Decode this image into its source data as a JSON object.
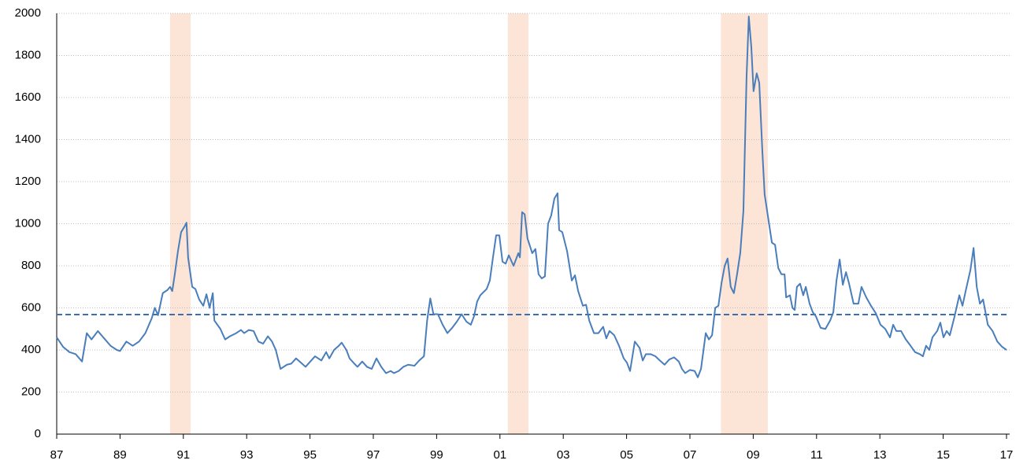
{
  "chart_data": {
    "type": "line",
    "x": [
      1987.0,
      1987.2,
      1987.4,
      1987.6,
      1987.8,
      1987.95,
      1988.1,
      1988.3,
      1988.5,
      1988.7,
      1988.9,
      1989.0,
      1989.2,
      1989.4,
      1989.6,
      1989.8,
      1990.0,
      1990.1,
      1990.2,
      1990.35,
      1990.5,
      1990.58,
      1990.65,
      1990.73,
      1990.83,
      1990.93,
      1991.05,
      1991.1,
      1991.15,
      1991.28,
      1991.38,
      1991.5,
      1991.63,
      1991.73,
      1991.83,
      1991.93,
      1991.98,
      1992.17,
      1992.32,
      1992.47,
      1992.67,
      1992.82,
      1992.92,
      1993.07,
      1993.22,
      1993.37,
      1993.52,
      1993.67,
      1993.8,
      1993.92,
      1994.07,
      1994.27,
      1994.41,
      1994.56,
      1994.71,
      1994.86,
      1995.01,
      1995.16,
      1995.36,
      1995.51,
      1995.61,
      1995.76,
      1995.91,
      1996.0,
      1996.15,
      1996.25,
      1996.4,
      1996.5,
      1996.65,
      1996.8,
      1996.95,
      1997.1,
      1997.25,
      1997.4,
      1997.55,
      1997.65,
      1997.8,
      1997.95,
      1998.1,
      1998.3,
      1998.45,
      1998.6,
      1998.7,
      1998.8,
      1998.9,
      1999.04,
      1999.19,
      1999.34,
      1999.49,
      1999.64,
      1999.79,
      1999.94,
      2000.08,
      2000.18,
      2000.28,
      2000.38,
      2000.58,
      2000.68,
      2000.78,
      2000.88,
      2000.98,
      2001.08,
      2001.18,
      2001.28,
      2001.43,
      2001.58,
      2001.63,
      2001.7,
      2001.78,
      2001.87,
      2002.02,
      2002.12,
      2002.22,
      2002.32,
      2002.42,
      2002.52,
      2002.62,
      2002.72,
      2002.82,
      2002.87,
      2002.97,
      2003.12,
      2003.27,
      2003.37,
      2003.47,
      2003.62,
      2003.72,
      2003.82,
      2003.97,
      2004.11,
      2004.26,
      2004.36,
      2004.46,
      2004.61,
      2004.76,
      2004.91,
      2005.01,
      2005.11,
      2005.26,
      2005.41,
      2005.51,
      2005.61,
      2005.76,
      2005.91,
      2006.05,
      2006.2,
      2006.35,
      2006.5,
      2006.65,
      2006.75,
      2006.85,
      2007.0,
      2007.15,
      2007.25,
      2007.35,
      2007.5,
      2007.6,
      2007.7,
      2007.8,
      2007.9,
      2008.0,
      2008.1,
      2008.19,
      2008.29,
      2008.39,
      2008.49,
      2008.59,
      2008.69,
      2008.79,
      2008.86,
      2008.94,
      2009.01,
      2009.11,
      2009.19,
      2009.29,
      2009.36,
      2009.49,
      2009.59,
      2009.69,
      2009.79,
      2009.89,
      2009.99,
      2010.04,
      2010.16,
      2010.24,
      2010.31,
      2010.38,
      2010.48,
      2010.58,
      2010.66,
      2010.78,
      2010.88,
      2010.98,
      2011.13,
      2011.28,
      2011.43,
      2011.53,
      2011.63,
      2011.73,
      2011.83,
      2011.93,
      2012.02,
      2012.17,
      2012.32,
      2012.42,
      2012.57,
      2012.72,
      2012.87,
      2013.02,
      2013.17,
      2013.32,
      2013.42,
      2013.52,
      2013.67,
      2013.82,
      2013.97,
      2014.11,
      2014.26,
      2014.36,
      2014.46,
      2014.56,
      2014.66,
      2014.81,
      2014.91,
      2015.01,
      2015.11,
      2015.21,
      2015.36,
      2015.51,
      2015.61,
      2015.71,
      2015.86,
      2015.96,
      2016.06,
      2016.16,
      2016.26,
      2016.41,
      2016.56,
      2016.71,
      2016.86,
      2017.0
    ],
    "values": [
      460,
      415,
      390,
      380,
      345,
      480,
      450,
      490,
      455,
      420,
      400,
      395,
      440,
      420,
      440,
      480,
      550,
      600,
      565,
      670,
      685,
      700,
      680,
      760,
      870,
      960,
      990,
      1005,
      840,
      700,
      690,
      640,
      610,
      665,
      600,
      670,
      540,
      500,
      450,
      465,
      480,
      495,
      480,
      495,
      490,
      440,
      430,
      465,
      440,
      400,
      310,
      330,
      335,
      360,
      340,
      320,
      345,
      370,
      350,
      390,
      360,
      400,
      420,
      435,
      400,
      360,
      335,
      320,
      345,
      320,
      310,
      360,
      320,
      290,
      300,
      290,
      300,
      320,
      330,
      325,
      350,
      370,
      540,
      645,
      570,
      570,
      520,
      480,
      505,
      535,
      570,
      535,
      520,
      560,
      630,
      660,
      690,
      730,
      840,
      945,
      945,
      820,
      810,
      850,
      800,
      860,
      840,
      1055,
      1045,
      930,
      860,
      880,
      760,
      740,
      750,
      1000,
      1040,
      1120,
      1145,
      970,
      960,
      870,
      730,
      755,
      680,
      610,
      615,
      540,
      480,
      480,
      510,
      455,
      490,
      470,
      420,
      360,
      340,
      300,
      440,
      410,
      350,
      380,
      380,
      370,
      350,
      330,
      355,
      365,
      345,
      310,
      290,
      305,
      300,
      270,
      310,
      480,
      450,
      470,
      600,
      610,
      720,
      800,
      835,
      700,
      670,
      760,
      860,
      1060,
      1700,
      1985,
      1840,
      1630,
      1715,
      1670,
      1340,
      1140,
      1010,
      910,
      900,
      790,
      760,
      760,
      650,
      660,
      600,
      590,
      700,
      715,
      660,
      700,
      620,
      580,
      560,
      505,
      500,
      540,
      580,
      730,
      830,
      710,
      770,
      720,
      620,
      620,
      700,
      650,
      610,
      575,
      520,
      500,
      460,
      520,
      490,
      490,
      450,
      420,
      390,
      380,
      370,
      420,
      400,
      460,
      490,
      530,
      460,
      490,
      470,
      560,
      660,
      610,
      680,
      780,
      885,
      700,
      620,
      640,
      520,
      490,
      440,
      415,
      400
    ],
    "color": "#4a7ebb",
    "recessions": [
      [
        1990.58,
        1991.23
      ],
      [
        2001.25,
        2001.9
      ],
      [
        2007.98,
        2009.46
      ]
    ],
    "recession_color": "#fce4d6",
    "reference_line": 568,
    "reference_color": "#3a6fb5",
    "xlim": [
      1987,
      2017.1
    ],
    "xticks": [
      {
        "value": 1987,
        "label": "87"
      },
      {
        "value": 1989,
        "label": "89"
      },
      {
        "value": 1991,
        "label": "91"
      },
      {
        "value": 1993,
        "label": "93"
      },
      {
        "value": 1995,
        "label": "95"
      },
      {
        "value": 1997,
        "label": "97"
      },
      {
        "value": 1999,
        "label": "99"
      },
      {
        "value": 2001,
        "label": "01"
      },
      {
        "value": 2003,
        "label": "03"
      },
      {
        "value": 2005,
        "label": "05"
      },
      {
        "value": 2007,
        "label": "07"
      },
      {
        "value": 2009,
        "label": "09"
      },
      {
        "value": 2011,
        "label": "11"
      },
      {
        "value": 2013,
        "label": "13"
      },
      {
        "value": 2015,
        "label": "15"
      },
      {
        "value": 2017,
        "label": "17"
      }
    ],
    "ylim": [
      0,
      2000
    ],
    "yticks": [
      0,
      200,
      400,
      600,
      800,
      1000,
      1200,
      1400,
      1600,
      1800,
      2000
    ],
    "grid": true
  }
}
